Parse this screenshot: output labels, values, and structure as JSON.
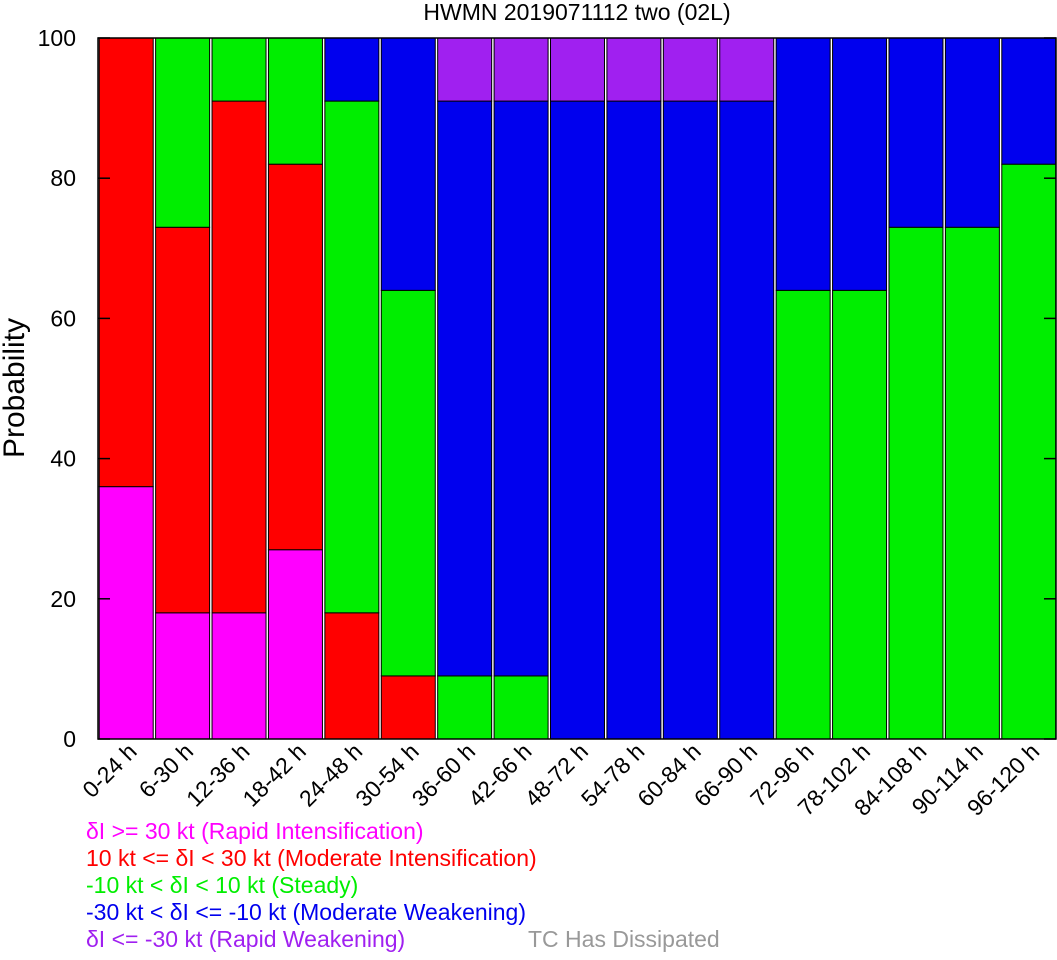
{
  "chart_data": {
    "type": "bar",
    "stacked": true,
    "title": "HWMN 2019071112 two (02L)",
    "xlabel": "",
    "ylabel": "Probability",
    "ylim": [
      0,
      100
    ],
    "yticks": [
      0,
      20,
      40,
      60,
      80,
      100
    ],
    "grid": false,
    "categories": [
      "0-24 h",
      "6-30 h",
      "12-36 h",
      "18-42 h",
      "24-48 h",
      "30-54 h",
      "36-60 h",
      "42-66 h",
      "48-72 h",
      "54-78 h",
      "60-84 h",
      "66-90 h",
      "72-96 h",
      "78-102 h",
      "84-108 h",
      "90-114 h",
      "96-120 h"
    ],
    "series": [
      {
        "key": "ri",
        "color": "#ff00ff",
        "values": [
          36,
          18,
          18,
          27,
          0,
          0,
          0,
          0,
          0,
          0,
          0,
          0,
          0,
          0,
          0,
          0,
          0
        ]
      },
      {
        "key": "mi",
        "color": "#ff0000",
        "values": [
          64,
          55,
          73,
          55,
          18,
          9,
          0,
          0,
          0,
          0,
          0,
          0,
          0,
          0,
          0,
          0,
          0
        ]
      },
      {
        "key": "steady",
        "color": "#00ee00",
        "values": [
          0,
          27,
          9,
          18,
          73,
          55,
          9,
          9,
          0,
          0,
          0,
          0,
          64,
          64,
          73,
          73,
          82
        ]
      },
      {
        "key": "mw",
        "color": "#0000ee",
        "values": [
          0,
          0,
          0,
          0,
          9,
          36,
          82,
          82,
          91,
          91,
          91,
          91,
          36,
          36,
          27,
          27,
          18
        ]
      },
      {
        "key": "rw",
        "color": "#a020f0",
        "values": [
          0,
          0,
          0,
          0,
          0,
          0,
          9,
          9,
          9,
          9,
          9,
          9,
          0,
          0,
          0,
          0,
          0
        ]
      }
    ],
    "legend": [
      {
        "text": "δI >= 30 kt (Rapid Intensification)",
        "color": "#ff00ff"
      },
      {
        "text": "10 kt <= δI < 30 kt (Moderate Intensification)",
        "color": "#ff0000"
      },
      {
        "text": "-10 kt < δI < 10 kt (Steady)",
        "color": "#00ee00"
      },
      {
        "text": "-30 kt < δI <= -10 kt (Moderate Weakening)",
        "color": "#0000ee"
      },
      {
        "text": "δI <= -30 kt (Rapid Weakening)",
        "color": "#a020f0"
      }
    ],
    "dissipated_note": {
      "text": "TC Has Dissipated",
      "color": "#999999"
    }
  }
}
